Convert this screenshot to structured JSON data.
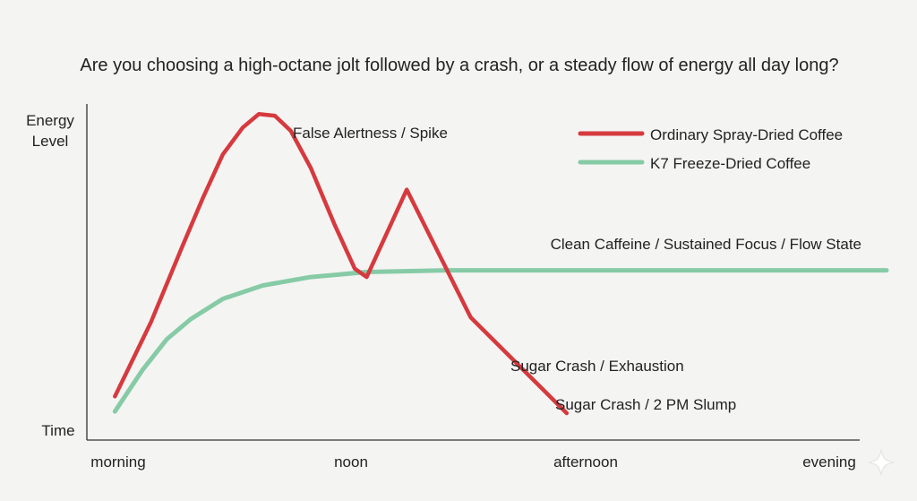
{
  "chart_data": {
    "type": "line",
    "title": "Are you choosing a high-octane jolt followed by a crash, or a steady flow of energy all day long?",
    "ylabel_lines": [
      "Energy",
      "Level"
    ],
    "xlabel": "Time",
    "x_ticks": [
      "morning",
      "noon",
      "afternoon",
      "evening"
    ],
    "xlim": [
      0,
      100
    ],
    "ylim": [
      0,
      100
    ],
    "grid": false,
    "legend_position": "top-right",
    "series": [
      {
        "name": "Ordinary Spray-Dried Coffee",
        "color": "#d63a3e",
        "points": [
          [
            3.5,
            13
          ],
          [
            8,
            35
          ],
          [
            12,
            58
          ],
          [
            14.5,
            72
          ],
          [
            17,
            85
          ],
          [
            19.5,
            93
          ],
          [
            21.5,
            97
          ],
          [
            23.5,
            96.5
          ],
          [
            25.5,
            92
          ],
          [
            28,
            81
          ],
          [
            31,
            64
          ],
          [
            33.5,
            51
          ],
          [
            35,
            48.5
          ],
          [
            40,
            74.5
          ],
          [
            48,
            36.5
          ],
          [
            60,
            8
          ]
        ]
      },
      {
        "name": "K7 Freeze-Dried Coffee",
        "color": "#86cba6",
        "points": [
          [
            3.5,
            8.5
          ],
          [
            7,
            21
          ],
          [
            10,
            30
          ],
          [
            13,
            36
          ],
          [
            17,
            42
          ],
          [
            22,
            46
          ],
          [
            28,
            48.5
          ],
          [
            35,
            50
          ],
          [
            45,
            50.5
          ],
          [
            60,
            50.5
          ],
          [
            80,
            50.5
          ],
          [
            100,
            50.5
          ]
        ]
      }
    ],
    "annotations": [
      {
        "text": "False Alertness / Spike"
      },
      {
        "text": "Clean Caffeine / Sustained Focus / Flow State"
      },
      {
        "text": "Sugar Crash / Exhaustion"
      },
      {
        "text": "Sugar Crash / 2 PM Slump"
      }
    ]
  }
}
